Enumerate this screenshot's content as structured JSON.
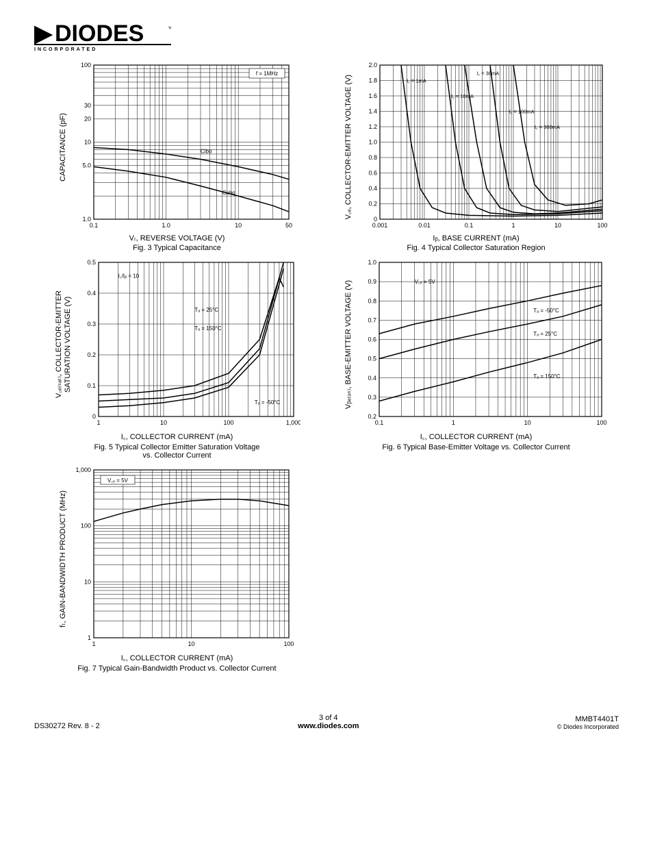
{
  "logo": {
    "main": "DIODES",
    "sub": "I N C O R P O R A T E D",
    "tm": "™"
  },
  "fig3": {
    "type": "line-loglog",
    "xlabel": "Vᵣ, REVERSE VOLTAGE (V)",
    "ylabel": "CAPACITANCE (pF)",
    "caption": "Fig. 3  Typical Capacitance",
    "xlim": [
      0.1,
      50
    ],
    "ylim": [
      1.0,
      100
    ],
    "xticks": [
      0.1,
      1.0,
      10,
      50
    ],
    "xtick_labels": [
      "0.1",
      "1.0",
      "10",
      "50"
    ],
    "yticks": [
      1.0,
      5.0,
      10,
      20,
      30,
      100
    ],
    "ytick_labels": [
      "1.0",
      "5.0",
      "10",
      "20",
      "30",
      "100"
    ],
    "annotation_f": "f = 1MHz",
    "series": [
      {
        "label": "Cibo",
        "data": [
          [
            0.1,
            8.5
          ],
          [
            0.3,
            8.0
          ],
          [
            1.0,
            7.0
          ],
          [
            3.0,
            6.0
          ],
          [
            10,
            4.8
          ],
          [
            30,
            3.8
          ],
          [
            50,
            3.3
          ]
        ]
      },
      {
        "label": "Cobo",
        "data": [
          [
            0.1,
            4.8
          ],
          [
            0.3,
            4.2
          ],
          [
            1.0,
            3.5
          ],
          [
            3.0,
            2.7
          ],
          [
            10,
            2.0
          ],
          [
            30,
            1.5
          ],
          [
            50,
            1.25
          ]
        ]
      }
    ],
    "colors": {
      "line": "#000000",
      "grid": "#000000",
      "bg": "#ffffff"
    },
    "line_width": 1.5,
    "font_size": 9
  },
  "fig4": {
    "type": "line-logx",
    "xlabel": "Iᵦ, BASE CURRENT (mA)",
    "ylabel": "V꜀ₑ, COLLECTOR-EMITTER VOLTAGE (V)",
    "caption": "Fig. 4  Typical Collector Saturation Region",
    "xlim": [
      0.001,
      100
    ],
    "ylim": [
      0,
      2.0
    ],
    "xticks": [
      0.001,
      0.01,
      0.1,
      1,
      10,
      100
    ],
    "xtick_labels": [
      "0.001",
      "0.01",
      "0.1",
      "1",
      "10",
      "100"
    ],
    "yticks": [
      0,
      0.2,
      0.4,
      0.6,
      0.8,
      1.0,
      1.2,
      1.4,
      1.6,
      1.8,
      2.0
    ],
    "ytick_labels": [
      "0",
      "0.2",
      "0.4",
      "0.6",
      "0.8",
      "1.0",
      "1.2",
      "1.4",
      "1.6",
      "1.8",
      "2.0"
    ],
    "series": [
      {
        "label": "I꜀ = 1mA",
        "data": [
          [
            0.003,
            2.0
          ],
          [
            0.005,
            1.0
          ],
          [
            0.008,
            0.4
          ],
          [
            0.015,
            0.15
          ],
          [
            0.03,
            0.08
          ],
          [
            0.1,
            0.05
          ],
          [
            1,
            0.04
          ],
          [
            10,
            0.05
          ],
          [
            100,
            0.08
          ]
        ]
      },
      {
        "label": "I꜀ = 10mA",
        "data": [
          [
            0.03,
            2.0
          ],
          [
            0.05,
            1.0
          ],
          [
            0.08,
            0.4
          ],
          [
            0.15,
            0.15
          ],
          [
            0.3,
            0.08
          ],
          [
            1,
            0.06
          ],
          [
            10,
            0.07
          ],
          [
            100,
            0.11
          ]
        ]
      },
      {
        "label": "I꜀ = 30mA",
        "data": [
          [
            0.08,
            2.0
          ],
          [
            0.15,
            1.0
          ],
          [
            0.25,
            0.4
          ],
          [
            0.5,
            0.15
          ],
          [
            1,
            0.09
          ],
          [
            3,
            0.07
          ],
          [
            10,
            0.08
          ],
          [
            100,
            0.13
          ]
        ]
      },
      {
        "label": "I꜀ = 100mA",
        "data": [
          [
            0.3,
            2.0
          ],
          [
            0.5,
            1.0
          ],
          [
            0.8,
            0.4
          ],
          [
            1.5,
            0.18
          ],
          [
            3,
            0.12
          ],
          [
            10,
            0.1
          ],
          [
            100,
            0.16
          ]
        ]
      },
      {
        "label": "I꜀ = 300mA",
        "data": [
          [
            1.0,
            2.0
          ],
          [
            1.8,
            1.0
          ],
          [
            3,
            0.45
          ],
          [
            6,
            0.25
          ],
          [
            15,
            0.18
          ],
          [
            50,
            0.2
          ],
          [
            100,
            0.25
          ]
        ]
      }
    ],
    "colors": {
      "line": "#000000",
      "grid": "#000000",
      "bg": "#ffffff"
    },
    "line_width": 1.5,
    "font_size": 9
  },
  "fig5": {
    "type": "line-logx",
    "xlabel": "I꜀, COLLECTOR CURRENT (mA)",
    "ylabel": "V꜀ₑ₍ₛₐₜ₎, COLLECTOR-EMITTER\nSATURATION VOLTAGE (V)",
    "caption": "Fig. 5  Typical Collector Emitter Saturation Voltage\nvs. Collector Current",
    "xlim": [
      1,
      1000
    ],
    "ylim": [
      0,
      0.5
    ],
    "xticks": [
      1,
      10,
      100,
      1000
    ],
    "xtick_labels": [
      "1",
      "10",
      "100",
      "1,000"
    ],
    "yticks": [
      0,
      0.1,
      0.2,
      0.3,
      0.4,
      0.5
    ],
    "ytick_labels": [
      "0",
      "0.1",
      "0.2",
      "0.3",
      "0.4",
      "0.5"
    ],
    "annotation_ratio": "I꜀/Iᵦ = 10",
    "series": [
      {
        "label": "Tₐ = 25°C",
        "data": [
          [
            1,
            0.05
          ],
          [
            3,
            0.055
          ],
          [
            10,
            0.06
          ],
          [
            30,
            0.075
          ],
          [
            100,
            0.11
          ],
          [
            300,
            0.22
          ],
          [
            700,
            0.5
          ]
        ]
      },
      {
        "label": "Tₐ = 150°C",
        "data": [
          [
            1,
            0.03
          ],
          [
            3,
            0.035
          ],
          [
            10,
            0.045
          ],
          [
            30,
            0.06
          ],
          [
            100,
            0.095
          ],
          [
            300,
            0.2
          ],
          [
            700,
            0.48
          ]
        ]
      },
      {
        "label": "Tₐ = -50°C",
        "data": [
          [
            1,
            0.07
          ],
          [
            3,
            0.075
          ],
          [
            10,
            0.085
          ],
          [
            30,
            0.1
          ],
          [
            100,
            0.14
          ],
          [
            300,
            0.25
          ],
          [
            600,
            0.45
          ],
          [
            700,
            0.42
          ]
        ]
      }
    ],
    "colors": {
      "line": "#000000",
      "grid": "#000000",
      "bg": "#ffffff"
    },
    "line_width": 1.5,
    "font_size": 9
  },
  "fig6": {
    "type": "line-logx",
    "xlabel": "I꜀, COLLECTOR CURRENT (mA)",
    "ylabel": "Vᵦₑ₍ₒₙ₎, BASE-EMITTER VOLTAGE (V)",
    "caption": "Fig. 6  Typical Base-Emitter Voltage vs. Collector Current",
    "xlim": [
      0.1,
      100
    ],
    "ylim": [
      0.2,
      1.0
    ],
    "xticks": [
      0.1,
      1,
      10,
      100
    ],
    "xtick_labels": [
      "0.1",
      "1",
      "10",
      "100"
    ],
    "yticks": [
      0.2,
      0.3,
      0.4,
      0.5,
      0.6,
      0.7,
      0.8,
      0.9,
      1.0
    ],
    "ytick_labels": [
      "0.2",
      "0.3",
      "0.4",
      "0.5",
      "0.6",
      "0.7",
      "0.8",
      "0.9",
      "1.0"
    ],
    "annotation_vce": "V꜀ₑ = 5V",
    "series": [
      {
        "label": "Tₐ = -50°C",
        "data": [
          [
            0.1,
            0.63
          ],
          [
            0.3,
            0.68
          ],
          [
            1,
            0.72
          ],
          [
            3,
            0.76
          ],
          [
            10,
            0.8
          ],
          [
            30,
            0.84
          ],
          [
            100,
            0.88
          ]
        ]
      },
      {
        "label": "Tₐ = 25°C",
        "data": [
          [
            0.1,
            0.5
          ],
          [
            0.3,
            0.55
          ],
          [
            1,
            0.6
          ],
          [
            3,
            0.64
          ],
          [
            10,
            0.68
          ],
          [
            30,
            0.72
          ],
          [
            100,
            0.78
          ]
        ]
      },
      {
        "label": "Tₐ = 150°C",
        "data": [
          [
            0.1,
            0.28
          ],
          [
            0.3,
            0.33
          ],
          [
            1,
            0.38
          ],
          [
            3,
            0.43
          ],
          [
            10,
            0.48
          ],
          [
            30,
            0.53
          ],
          [
            100,
            0.6
          ]
        ]
      }
    ],
    "colors": {
      "line": "#000000",
      "grid": "#000000",
      "bg": "#ffffff"
    },
    "line_width": 1.5,
    "font_size": 9
  },
  "fig7": {
    "type": "line-loglog",
    "xlabel": "I꜀, COLLECTOR CURRENT (mA)",
    "ylabel": "fₜ, GAIN-BANDWIDTH PRODUCT (MHz)",
    "caption": "Fig. 7  Typical Gain-Bandwidth Product vs. Collector Current",
    "xlim": [
      1,
      100
    ],
    "ylim": [
      1,
      1000
    ],
    "xticks": [
      1,
      10,
      100
    ],
    "xtick_labels": [
      "1",
      "10",
      "100"
    ],
    "yticks": [
      1,
      10,
      100,
      1000
    ],
    "ytick_labels": [
      "1",
      "10",
      "100",
      "1,000"
    ],
    "annotation_vce": "V꜀ₑ = 5V",
    "series": [
      {
        "label": "",
        "data": [
          [
            1,
            120
          ],
          [
            2,
            170
          ],
          [
            3,
            200
          ],
          [
            5,
            240
          ],
          [
            10,
            280
          ],
          [
            20,
            300
          ],
          [
            30,
            300
          ],
          [
            50,
            280
          ],
          [
            100,
            230
          ]
        ]
      }
    ],
    "colors": {
      "line": "#000000",
      "grid": "#000000",
      "bg": "#ffffff"
    },
    "line_width": 1.5,
    "font_size": 9
  },
  "footer": {
    "left": "DS30272 Rev. 8 - 2",
    "center_page": "3 of 4",
    "center_url": "www.diodes.com",
    "right_part": "MMBT4401T",
    "right_copy": "© Diodes Incorporated"
  }
}
